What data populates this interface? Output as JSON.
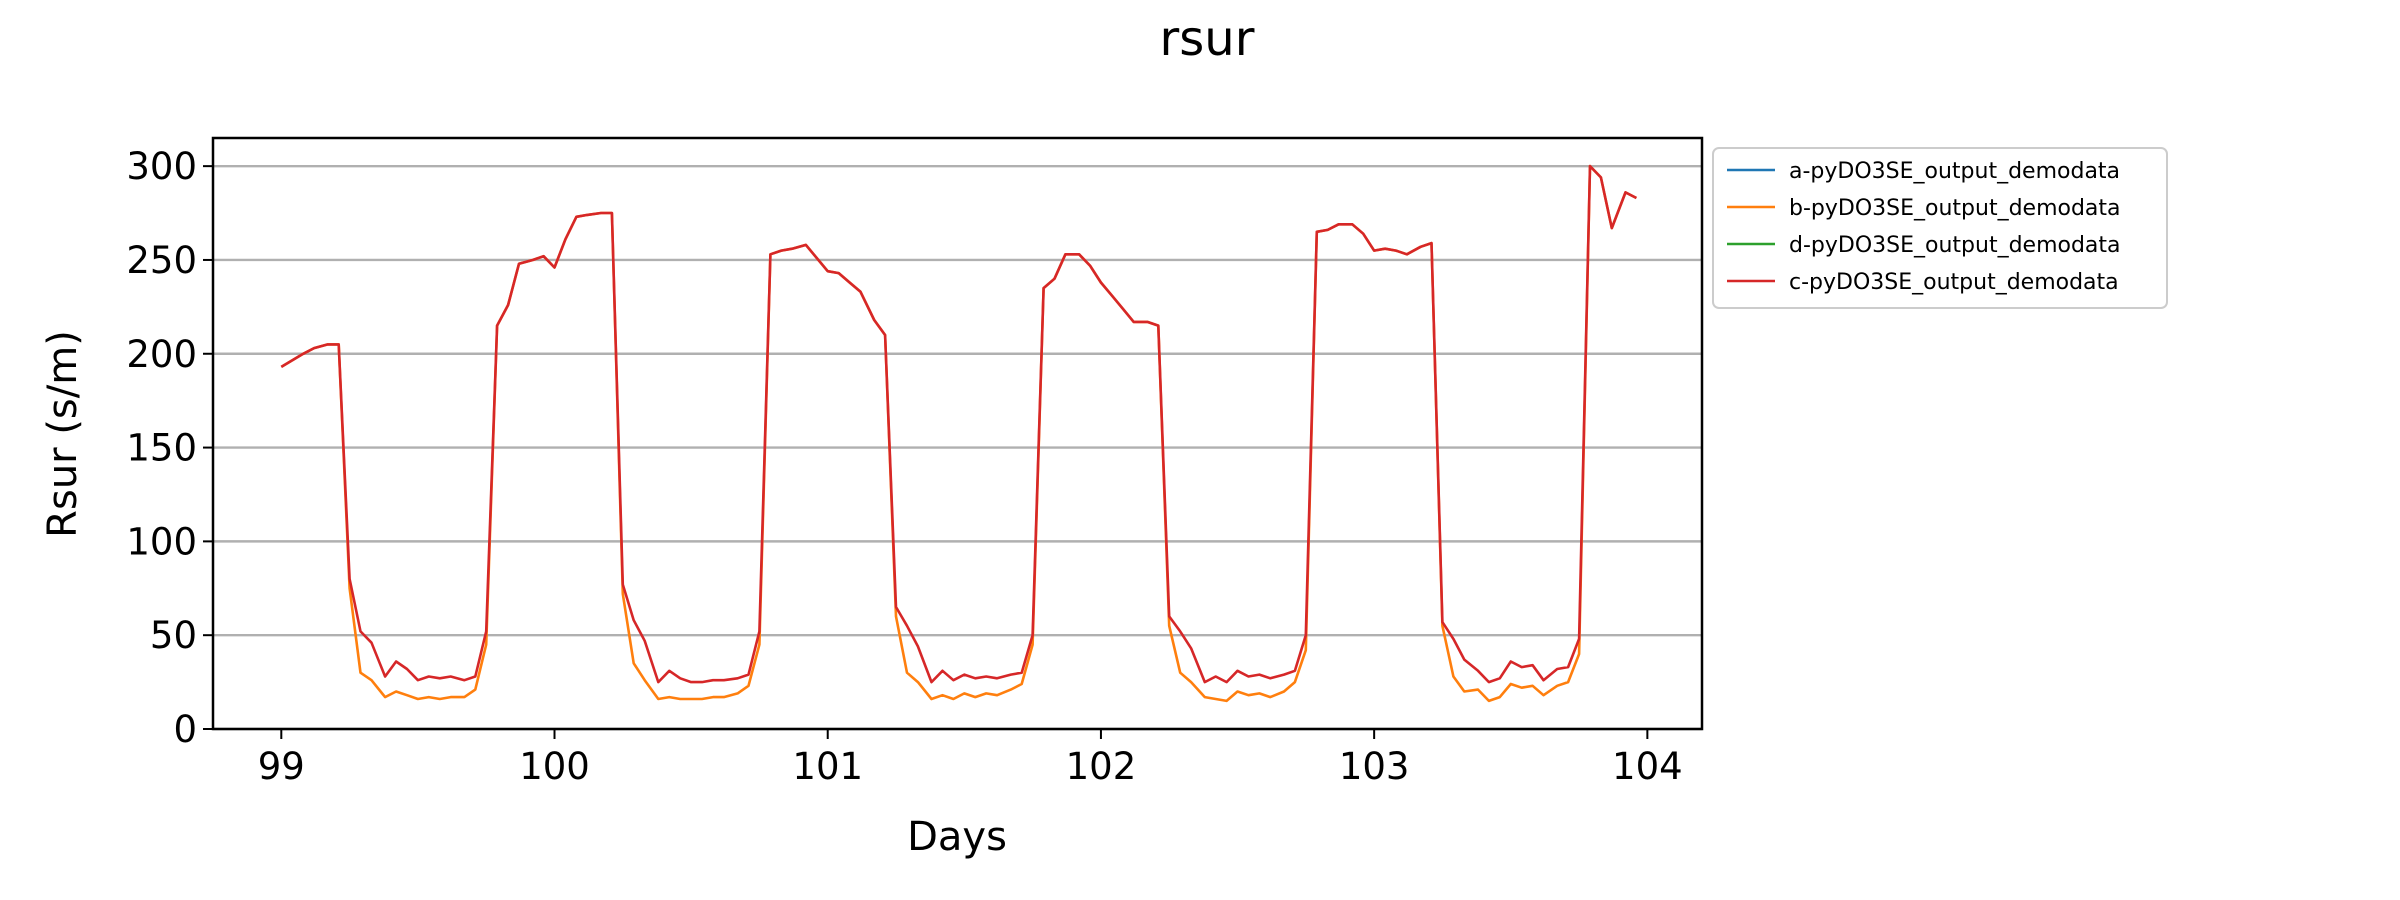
{
  "chart_data": {
    "type": "line",
    "title": "rsur",
    "xlabel": "Days",
    "ylabel": "Rsur (s/m)",
    "xlim": [
      98.75,
      104.2
    ],
    "ylim": [
      0,
      315
    ],
    "xticks": [
      99,
      100,
      101,
      102,
      103,
      104
    ],
    "yticks": [
      0,
      50,
      100,
      150,
      200,
      250,
      300
    ],
    "grid": "horizontal",
    "legend_position": "outside-upper-right",
    "series": [
      {
        "name": "a-pyDO3SE_output_demodata",
        "color": "#1f77b4",
        "points": []
      },
      {
        "name": "b-pyDO3SE_output_demodata",
        "color": "#ff7f0e",
        "points": [
          [
            99.0,
            193
          ],
          [
            99.08,
            200
          ],
          [
            99.12,
            203
          ],
          [
            99.17,
            205
          ],
          [
            99.21,
            205
          ],
          [
            99.25,
            75
          ],
          [
            99.29,
            30
          ],
          [
            99.33,
            26
          ],
          [
            99.38,
            17
          ],
          [
            99.42,
            20
          ],
          [
            99.46,
            18
          ],
          [
            99.5,
            16
          ],
          [
            99.54,
            17
          ],
          [
            99.58,
            16
          ],
          [
            99.62,
            17
          ],
          [
            99.67,
            17
          ],
          [
            99.71,
            21
          ],
          [
            99.75,
            45
          ],
          [
            99.79,
            215
          ],
          [
            99.83,
            226
          ],
          [
            99.87,
            248
          ],
          [
            99.92,
            250
          ],
          [
            99.96,
            252
          ],
          [
            100.0,
            246
          ],
          [
            100.04,
            261
          ],
          [
            100.08,
            273
          ],
          [
            100.12,
            274
          ],
          [
            100.17,
            275
          ],
          [
            100.21,
            275
          ],
          [
            100.25,
            72
          ],
          [
            100.29,
            35
          ],
          [
            100.33,
            26
          ],
          [
            100.38,
            16
          ],
          [
            100.42,
            17
          ],
          [
            100.46,
            16
          ],
          [
            100.5,
            16
          ],
          [
            100.54,
            16
          ],
          [
            100.58,
            17
          ],
          [
            100.62,
            17
          ],
          [
            100.67,
            19
          ],
          [
            100.71,
            23
          ],
          [
            100.75,
            45
          ],
          [
            100.79,
            253
          ],
          [
            100.83,
            255
          ],
          [
            100.87,
            256
          ],
          [
            100.92,
            258
          ],
          [
            100.96,
            251
          ],
          [
            101.0,
            244
          ],
          [
            101.04,
            243
          ],
          [
            101.08,
            238
          ],
          [
            101.12,
            233
          ],
          [
            101.17,
            218
          ],
          [
            101.21,
            210
          ],
          [
            101.25,
            60
          ],
          [
            101.29,
            30
          ],
          [
            101.33,
            25
          ],
          [
            101.38,
            16
          ],
          [
            101.42,
            18
          ],
          [
            101.46,
            16
          ],
          [
            101.5,
            19
          ],
          [
            101.54,
            17
          ],
          [
            101.58,
            19
          ],
          [
            101.62,
            18
          ],
          [
            101.67,
            21
          ],
          [
            101.71,
            24
          ],
          [
            101.75,
            45
          ],
          [
            101.79,
            235
          ],
          [
            101.83,
            240
          ],
          [
            101.87,
            253
          ],
          [
            101.92,
            253
          ],
          [
            101.96,
            247
          ],
          [
            102.0,
            238
          ],
          [
            102.04,
            231
          ],
          [
            102.08,
            224
          ],
          [
            102.12,
            217
          ],
          [
            102.17,
            217
          ],
          [
            102.21,
            215
          ],
          [
            102.25,
            55
          ],
          [
            102.29,
            30
          ],
          [
            102.33,
            25
          ],
          [
            102.38,
            17
          ],
          [
            102.42,
            16
          ],
          [
            102.46,
            15
          ],
          [
            102.5,
            20
          ],
          [
            102.54,
            18
          ],
          [
            102.58,
            19
          ],
          [
            102.62,
            17
          ],
          [
            102.67,
            20
          ],
          [
            102.71,
            25
          ],
          [
            102.75,
            42
          ],
          [
            102.79,
            265
          ],
          [
            102.83,
            266
          ],
          [
            102.87,
            269
          ],
          [
            102.92,
            269
          ],
          [
            102.96,
            264
          ],
          [
            103.0,
            255
          ],
          [
            103.04,
            256
          ],
          [
            103.08,
            255
          ],
          [
            103.12,
            253
          ],
          [
            103.17,
            257
          ],
          [
            103.21,
            259
          ],
          [
            103.25,
            55
          ],
          [
            103.29,
            28
          ],
          [
            103.33,
            20
          ],
          [
            103.38,
            21
          ],
          [
            103.42,
            15
          ],
          [
            103.46,
            17
          ],
          [
            103.5,
            24
          ],
          [
            103.54,
            22
          ],
          [
            103.58,
            23
          ],
          [
            103.62,
            18
          ],
          [
            103.67,
            23
          ],
          [
            103.71,
            25
          ],
          [
            103.75,
            40
          ],
          [
            103.79,
            300
          ],
          [
            103.83,
            294
          ],
          [
            103.87,
            267
          ],
          [
            103.92,
            286
          ],
          [
            103.96,
            283
          ]
        ]
      },
      {
        "name": "d-pyDO3SE_output_demodata",
        "color": "#2ca02c",
        "points": []
      },
      {
        "name": "c-pyDO3SE_output_demodata",
        "color": "#d62728",
        "points": [
          [
            99.0,
            193
          ],
          [
            99.08,
            200
          ],
          [
            99.12,
            203
          ],
          [
            99.17,
            205
          ],
          [
            99.21,
            205
          ],
          [
            99.25,
            80
          ],
          [
            99.29,
            52
          ],
          [
            99.33,
            46
          ],
          [
            99.38,
            28
          ],
          [
            99.42,
            36
          ],
          [
            99.46,
            32
          ],
          [
            99.5,
            26
          ],
          [
            99.54,
            28
          ],
          [
            99.58,
            27
          ],
          [
            99.62,
            28
          ],
          [
            99.67,
            26
          ],
          [
            99.71,
            28
          ],
          [
            99.75,
            52
          ],
          [
            99.79,
            215
          ],
          [
            99.83,
            226
          ],
          [
            99.87,
            248
          ],
          [
            99.92,
            250
          ],
          [
            99.96,
            252
          ],
          [
            100.0,
            246
          ],
          [
            100.04,
            261
          ],
          [
            100.08,
            273
          ],
          [
            100.12,
            274
          ],
          [
            100.17,
            275
          ],
          [
            100.21,
            275
          ],
          [
            100.25,
            77
          ],
          [
            100.29,
            58
          ],
          [
            100.33,
            47
          ],
          [
            100.38,
            25
          ],
          [
            100.42,
            31
          ],
          [
            100.46,
            27
          ],
          [
            100.5,
            25
          ],
          [
            100.54,
            25
          ],
          [
            100.58,
            26
          ],
          [
            100.62,
            26
          ],
          [
            100.67,
            27
          ],
          [
            100.71,
            29
          ],
          [
            100.75,
            52
          ],
          [
            100.79,
            253
          ],
          [
            100.83,
            255
          ],
          [
            100.87,
            256
          ],
          [
            100.92,
            258
          ],
          [
            100.96,
            251
          ],
          [
            101.0,
            244
          ],
          [
            101.04,
            243
          ],
          [
            101.08,
            238
          ],
          [
            101.12,
            233
          ],
          [
            101.17,
            218
          ],
          [
            101.21,
            210
          ],
          [
            101.25,
            65
          ],
          [
            101.29,
            55
          ],
          [
            101.33,
            44
          ],
          [
            101.38,
            25
          ],
          [
            101.42,
            31
          ],
          [
            101.46,
            26
          ],
          [
            101.5,
            29
          ],
          [
            101.54,
            27
          ],
          [
            101.58,
            28
          ],
          [
            101.62,
            27
          ],
          [
            101.67,
            29
          ],
          [
            101.71,
            30
          ],
          [
            101.75,
            50
          ],
          [
            101.79,
            235
          ],
          [
            101.83,
            240
          ],
          [
            101.87,
            253
          ],
          [
            101.92,
            253
          ],
          [
            101.96,
            247
          ],
          [
            102.0,
            238
          ],
          [
            102.04,
            231
          ],
          [
            102.08,
            224
          ],
          [
            102.12,
            217
          ],
          [
            102.17,
            217
          ],
          [
            102.21,
            215
          ],
          [
            102.25,
            60
          ],
          [
            102.29,
            52
          ],
          [
            102.33,
            43
          ],
          [
            102.38,
            25
          ],
          [
            102.42,
            28
          ],
          [
            102.46,
            25
          ],
          [
            102.5,
            31
          ],
          [
            102.54,
            28
          ],
          [
            102.58,
            29
          ],
          [
            102.62,
            27
          ],
          [
            102.67,
            29
          ],
          [
            102.71,
            31
          ],
          [
            102.75,
            50
          ],
          [
            102.79,
            265
          ],
          [
            102.83,
            266
          ],
          [
            102.87,
            269
          ],
          [
            102.92,
            269
          ],
          [
            102.96,
            264
          ],
          [
            103.0,
            255
          ],
          [
            103.04,
            256
          ],
          [
            103.08,
            255
          ],
          [
            103.12,
            253
          ],
          [
            103.17,
            257
          ],
          [
            103.21,
            259
          ],
          [
            103.25,
            57
          ],
          [
            103.29,
            48
          ],
          [
            103.33,
            37
          ],
          [
            103.38,
            31
          ],
          [
            103.42,
            25
          ],
          [
            103.46,
            27
          ],
          [
            103.5,
            36
          ],
          [
            103.54,
            33
          ],
          [
            103.58,
            34
          ],
          [
            103.62,
            26
          ],
          [
            103.67,
            32
          ],
          [
            103.71,
            33
          ],
          [
            103.75,
            48
          ],
          [
            103.79,
            300
          ],
          [
            103.83,
            294
          ],
          [
            103.87,
            267
          ],
          [
            103.92,
            286
          ],
          [
            103.96,
            283
          ]
        ]
      }
    ]
  }
}
